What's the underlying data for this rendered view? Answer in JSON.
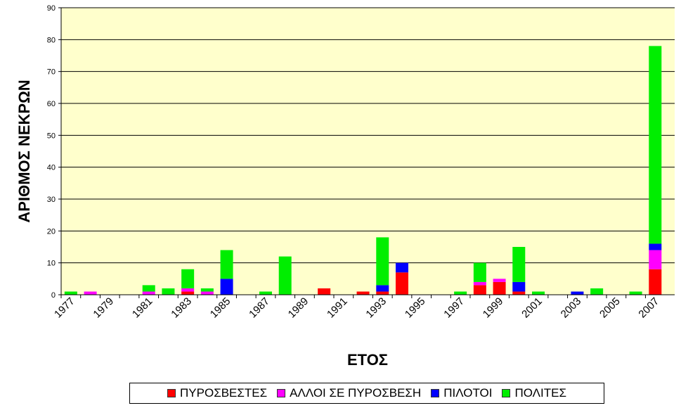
{
  "chart_data": {
    "type": "bar",
    "stacked": true,
    "title": "",
    "xlabel": "ΕΤΟΣ",
    "ylabel": "ΑΡΙΘΜΟΣ ΝΕΚΡΩΝ",
    "ylim": [
      0,
      90
    ],
    "yticks": [
      0,
      10,
      20,
      30,
      40,
      50,
      60,
      70,
      80,
      90
    ],
    "grid": true,
    "legend_position": "bottom",
    "plot_background": "#ffffcc",
    "categories": [
      1977,
      1978,
      1979,
      1980,
      1981,
      1982,
      1983,
      1984,
      1985,
      1986,
      1987,
      1988,
      1989,
      1990,
      1991,
      1992,
      1993,
      1994,
      1995,
      1996,
      1997,
      1998,
      1999,
      2000,
      2001,
      2002,
      2003,
      2004,
      2005,
      2006,
      2007
    ],
    "xtick_labels": [
      "1977",
      "1979",
      "1981",
      "1983",
      "1985",
      "1987",
      "1989",
      "1991",
      "1993",
      "1995",
      "1997",
      "1999",
      "2001",
      "2003",
      "2005",
      "2007"
    ],
    "series": [
      {
        "name": "ΠΥΡΟΣΒΕΣΤΕΣ",
        "color": "#ff0000",
        "values": [
          0,
          0,
          0,
          0,
          0,
          0,
          1,
          0,
          0,
          0,
          0,
          0,
          0,
          2,
          0,
          1,
          1,
          7,
          0,
          0,
          0,
          3,
          4,
          1,
          0,
          0,
          0,
          0,
          0,
          0,
          8
        ]
      },
      {
        "name": "ΑΛΛΟΙ ΣΕ ΠΥΡΟΣΒΕΣΗ",
        "color": "#ff00ff",
        "values": [
          0,
          1,
          0,
          0,
          1,
          0,
          1,
          1,
          0,
          0,
          0,
          0,
          0,
          0,
          0,
          0,
          0,
          0,
          0,
          0,
          0,
          1,
          1,
          0,
          0,
          0,
          0,
          0,
          0,
          0,
          6
        ]
      },
      {
        "name": "ΠΙΛΟΤΟΙ",
        "color": "#0000ff",
        "values": [
          0,
          0,
          0,
          0,
          0,
          0,
          0,
          0,
          5,
          0,
          0,
          0,
          0,
          0,
          0,
          0,
          2,
          3,
          0,
          0,
          0,
          0,
          0,
          3,
          0,
          0,
          1,
          0,
          0,
          0,
          2
        ]
      },
      {
        "name": "ΠΟΛΙΤΕΣ",
        "color": "#00ee00",
        "values": [
          1,
          0,
          0,
          0,
          2,
          2,
          6,
          1,
          9,
          0,
          1,
          12,
          0,
          0,
          0,
          0,
          15,
          0,
          0,
          0,
          1,
          6,
          0,
          11,
          1,
          0,
          0,
          2,
          0,
          1,
          62
        ]
      }
    ]
  }
}
